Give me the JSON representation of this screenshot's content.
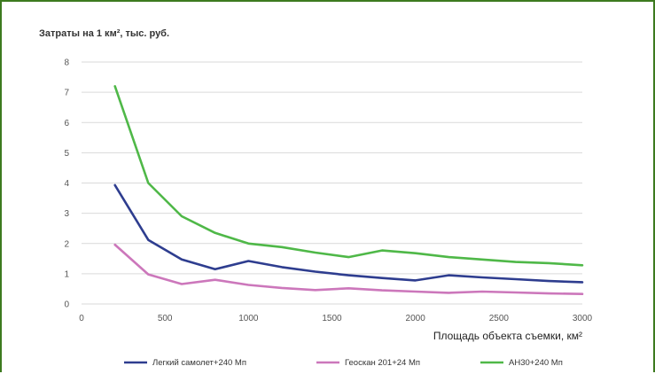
{
  "chart_data": {
    "type": "line",
    "title": "",
    "ylabel": "Затраты на 1 км², тыс. руб.",
    "xlabel": "Площадь объекта съемки, км²",
    "xlim": [
      0,
      3000
    ],
    "ylim": [
      0,
      8
    ],
    "x_ticks": [
      0,
      500,
      1000,
      1500,
      2000,
      2500,
      3000
    ],
    "y_ticks": [
      0,
      1,
      2,
      3,
      4,
      5,
      6,
      7,
      8
    ],
    "grid": "horizontal",
    "legend_position": "bottom",
    "x": [
      200,
      400,
      600,
      800,
      1000,
      1200,
      1400,
      1600,
      1800,
      2000,
      2200,
      2400,
      2600,
      2800,
      3000
    ],
    "series": [
      {
        "name": "Легкий самолет+240 Мп",
        "color": "#2e3d8f",
        "values": [
          3.93,
          2.12,
          1.47,
          1.15,
          1.42,
          1.22,
          1.07,
          0.95,
          0.86,
          0.78,
          0.95,
          0.88,
          0.82,
          0.76,
          0.72
        ]
      },
      {
        "name": "Геоскан 201+24 Мп",
        "color": "#cc77bb",
        "values": [
          1.96,
          0.98,
          0.66,
          0.8,
          0.63,
          0.53,
          0.46,
          0.52,
          0.45,
          0.41,
          0.37,
          0.41,
          0.38,
          0.35,
          0.33
        ]
      },
      {
        "name": "АН30+240 Мп",
        "color": "#4fb848",
        "values": [
          7.2,
          4.0,
          2.9,
          2.35,
          2.0,
          1.88,
          1.7,
          1.55,
          1.77,
          1.68,
          1.55,
          1.47,
          1.39,
          1.35,
          1.28
        ]
      }
    ]
  }
}
